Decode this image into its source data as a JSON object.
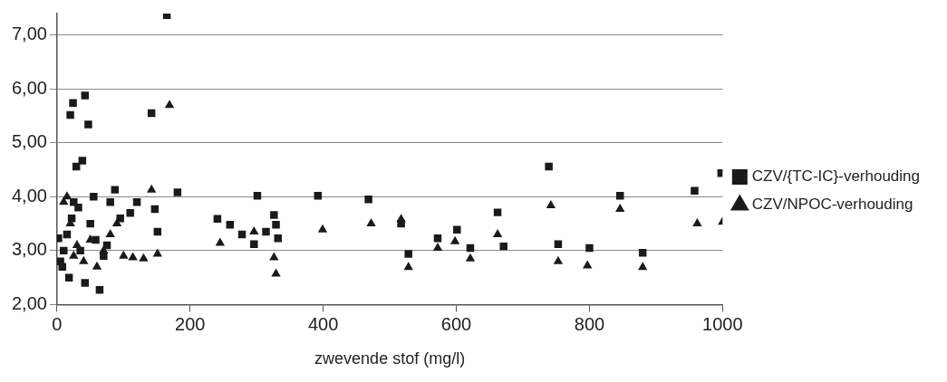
{
  "chart_data": {
    "type": "scatter",
    "xlabel": "zwevende stof (mg/l)",
    "xlim": [
      0,
      1000
    ],
    "xticks": [
      0,
      200,
      400,
      600,
      800,
      1000
    ],
    "ylim": [
      2,
      7.4
    ],
    "yticks": [
      {
        "value": 2,
        "label": "2,00"
      },
      {
        "value": 3,
        "label": "3,00"
      },
      {
        "value": 4,
        "label": "4,00"
      },
      {
        "value": 5,
        "label": "5,00"
      },
      {
        "value": 6,
        "label": "6,00"
      },
      {
        "value": 7,
        "label": "7,00"
      }
    ],
    "grid": "y",
    "legend": "right",
    "series": [
      {
        "name": "CZV/{TC-IC}-verhouding",
        "color": "#1a1a1a",
        "marker": "square",
        "x": [
          165,
          42,
          24,
          20,
          47,
          142,
          38,
          29,
          181,
          87,
          151,
          147,
          64,
          42,
          2,
          5,
          8,
          10,
          15,
          18,
          22,
          25,
          32,
          35,
          45,
          50,
          55,
          58,
          70,
          75,
          80,
          85,
          95,
          110,
          120,
          301,
          241,
          260,
          278,
          296,
          314,
          326,
          332,
          329,
          392,
          468,
          517,
          528,
          572,
          601,
          621,
          662,
          671,
          739,
          753,
          800,
          846,
          880,
          958,
          998
        ],
        "values": [
          7.37,
          5.88,
          5.74,
          5.52,
          5.34,
          5.55,
          4.67,
          4.56,
          4.08,
          4.13,
          3.35,
          3.77,
          2.27,
          2.4,
          3.23,
          2.8,
          2.7,
          3.0,
          3.3,
          2.5,
          3.6,
          3.9,
          3.8,
          3.0,
          null,
          3.5,
          4.0,
          3.2,
          2.9,
          3.1,
          3.9,
          null,
          3.6,
          3.7,
          3.9,
          4.02,
          3.59,
          3.48,
          3.3,
          3.12,
          3.35,
          3.66,
          3.23,
          3.48,
          4.02,
          3.95,
          3.5,
          2.94,
          3.23,
          3.39,
          3.05,
          3.71,
          3.08,
          4.56,
          3.12,
          3.05,
          4.02,
          2.96,
          4.11,
          4.44
        ]
      },
      {
        "name": "CZV/NPOC-verhouding",
        "color": "#1a1a1a",
        "marker": "triangle",
        "x": [
          169,
          142,
          151,
          114,
          10,
          15,
          20,
          25,
          30,
          40,
          50,
          60,
          70,
          80,
          90,
          100,
          130,
          245,
          326,
          329,
          296,
          392,
          399,
          472,
          517,
          528,
          572,
          598,
          621,
          662,
          742,
          753,
          797,
          846,
          880,
          962,
          1000
        ],
        "values": [
          5.7,
          4.13,
          2.94,
          2.87,
          3.9,
          4.0,
          3.5,
          2.9,
          3.1,
          2.8,
          3.2,
          2.7,
          3.0,
          3.3,
          3.5,
          2.9,
          2.85,
          3.14,
          2.87,
          2.57,
          3.35,
          null,
          3.39,
          3.5,
          3.58,
          2.69,
          3.05,
          3.17,
          2.85,
          3.3,
          3.84,
          2.8,
          2.72,
          3.77,
          2.69,
          3.5,
          3.53
        ]
      }
    ]
  }
}
